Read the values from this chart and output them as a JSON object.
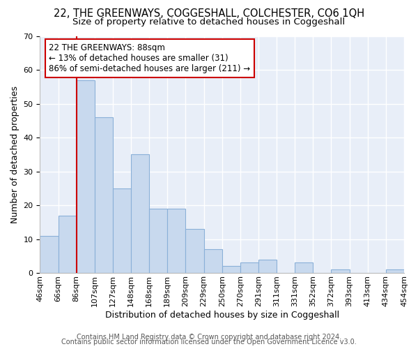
{
  "title": "22, THE GREENWAYS, COGGESHALL, COLCHESTER, CO6 1QH",
  "subtitle": "Size of property relative to detached houses in Coggeshall",
  "xlabel": "Distribution of detached houses by size in Coggeshall",
  "ylabel": "Number of detached properties",
  "bin_labels": [
    "46sqm",
    "66sqm",
    "86sqm",
    "107sqm",
    "127sqm",
    "148sqm",
    "168sqm",
    "189sqm",
    "209sqm",
    "229sqm",
    "250sqm",
    "270sqm",
    "291sqm",
    "311sqm",
    "331sqm",
    "352sqm",
    "372sqm",
    "393sqm",
    "413sqm",
    "434sqm",
    "454sqm"
  ],
  "bar_values": [
    11,
    17,
    57,
    46,
    25,
    35,
    19,
    19,
    13,
    7,
    2,
    3,
    4,
    0,
    3,
    0,
    1,
    0,
    0,
    1
  ],
  "bar_color": "#c8d9ee",
  "bar_edge_color": "#8ab0d8",
  "red_line_color": "#cc0000",
  "annotation_text": "22 THE GREENWAYS: 88sqm\n← 13% of detached houses are smaller (31)\n86% of semi-detached houses are larger (211) →",
  "annotation_box_color": "#ffffff",
  "annotation_box_edge": "#cc0000",
  "ylim": [
    0,
    70
  ],
  "yticks": [
    0,
    10,
    20,
    30,
    40,
    50,
    60,
    70
  ],
  "bg_color": "#ffffff",
  "plot_bg_color": "#e8eef8",
  "grid_color": "#ffffff",
  "footer_line1": "Contains HM Land Registry data © Crown copyright and database right 2024.",
  "footer_line2": "Contains public sector information licensed under the Open Government Licence v3.0.",
  "title_fontsize": 10.5,
  "subtitle_fontsize": 9.5,
  "axis_label_fontsize": 9,
  "tick_fontsize": 8,
  "annot_fontsize": 8.5,
  "footer_fontsize": 7
}
